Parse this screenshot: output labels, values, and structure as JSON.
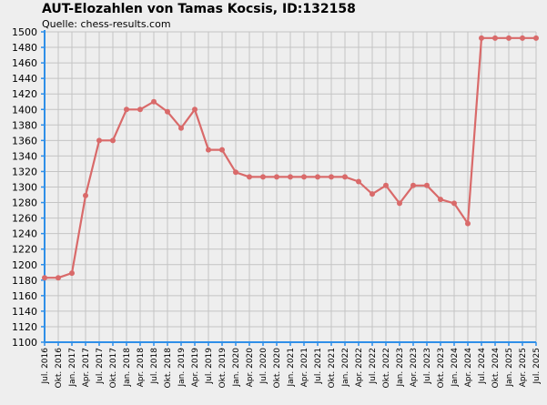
{
  "chart_data": {
    "type": "line",
    "title": "AUT-Elozahlen von Tamas Kocsis, ID:132158",
    "subtitle": "Quelle: chess-results.com",
    "xlabel": "",
    "ylabel": "",
    "ylim": [
      1100,
      1500
    ],
    "ytick_step": 20,
    "grid": true,
    "categories": [
      "Jul. 2016",
      "Okt. 2016",
      "Jan. 2017",
      "Apr. 2017",
      "Jul. 2017",
      "Okt. 2017",
      "Jan. 2018",
      "Apr. 2018",
      "Jul. 2018",
      "Okt. 2018",
      "Jan. 2019",
      "Apr. 2019",
      "Jul. 2019",
      "Okt. 2019",
      "Jan. 2020",
      "Apr. 2020",
      "Jul. 2020",
      "Okt. 2020",
      "Jan. 2021",
      "Apr. 2021",
      "Jul. 2021",
      "Okt. 2021",
      "Jan. 2022",
      "Apr. 2022",
      "Jul. 2022",
      "Okt. 2022",
      "Jan. 2023",
      "Apr. 2023",
      "Jul. 2023",
      "Okt. 2023",
      "Jan. 2024",
      "Apr. 2024",
      "Jul. 2024",
      "Okt. 2024",
      "Jan. 2025",
      "Apr. 2025",
      "Jul. 2025"
    ],
    "series": [
      {
        "values": [
          1183,
          1183,
          1189,
          1289,
          1360,
          1360,
          1400,
          1400,
          1410,
          1397,
          1376,
          1400,
          1348,
          1348,
          1319,
          1313,
          1313,
          1313,
          1313,
          1313,
          1313,
          1313,
          1313,
          1307,
          1291,
          1302,
          1279,
          1302,
          1302,
          1284,
          1279,
          1253,
          1492,
          1492,
          1492,
          1492,
          1492
        ]
      }
    ],
    "colors": {
      "background": "#eeeeee",
      "grid": "#c4c4c4",
      "axis": "#2f8fe8",
      "line": "#d96a6a"
    }
  }
}
